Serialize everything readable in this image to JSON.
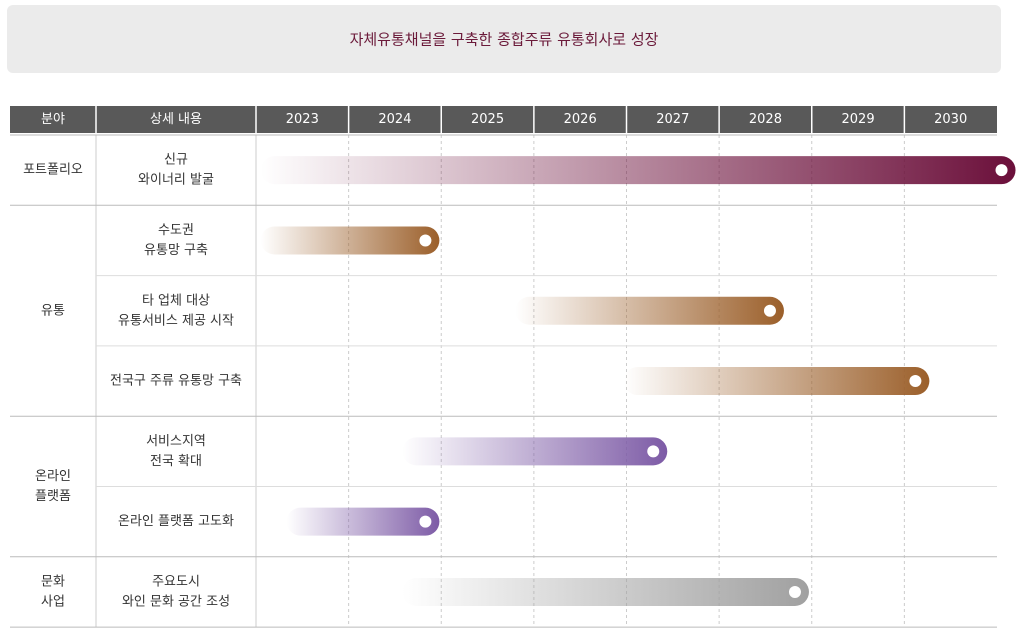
{
  "header": {
    "title": "자체유통채널을 구축한 종합주류 유통회사로 성장"
  },
  "table": {
    "columns": [
      "분야",
      "상세 내용"
    ],
    "years": [
      2023,
      2024,
      2025,
      2026,
      2027,
      2028,
      2029,
      2030
    ],
    "groups": [
      {
        "label": [
          "포트폴리오"
        ],
        "rows": [
          {
            "detail": [
              "신규",
              "와이너리 발굴"
            ],
            "start": 2023.05,
            "end": 2031.2,
            "color": "#6b0f3a"
          }
        ]
      },
      {
        "label": [
          "유통"
        ],
        "rows": [
          {
            "detail": [
              "수도권",
              "유통망 구축"
            ],
            "start": 2023.05,
            "end": 2024.98,
            "color": "#9b5f2a"
          },
          {
            "detail": [
              "타 업체 대상",
              "유통서비스 제공 시작"
            ],
            "start": 2025.8,
            "end": 2028.7,
            "color": "#9b5f2a"
          },
          {
            "detail": [
              "전국구 주류 유통망 구축"
            ],
            "start": 2026.97,
            "end": 2030.27,
            "color": "#9b5f2a"
          }
        ]
      },
      {
        "label": [
          "온라인",
          "플랫폼"
        ],
        "rows": [
          {
            "detail": [
              "서비스지역",
              "전국 확대"
            ],
            "start": 2024.58,
            "end": 2027.44,
            "color": "#7d5ba6"
          },
          {
            "detail": [
              "온라인 플랫폼 고도화"
            ],
            "start": 2023.33,
            "end": 2024.98,
            "color": "#7d5ba6"
          }
        ]
      },
      {
        "label": [
          "문화",
          "사업"
        ],
        "rows": [
          {
            "detail": [
              "주요도시",
              "와인 문화 공간 조성"
            ],
            "start": 2024.58,
            "end": 2028.97,
            "color": "#a0a0a0"
          }
        ]
      }
    ]
  }
}
